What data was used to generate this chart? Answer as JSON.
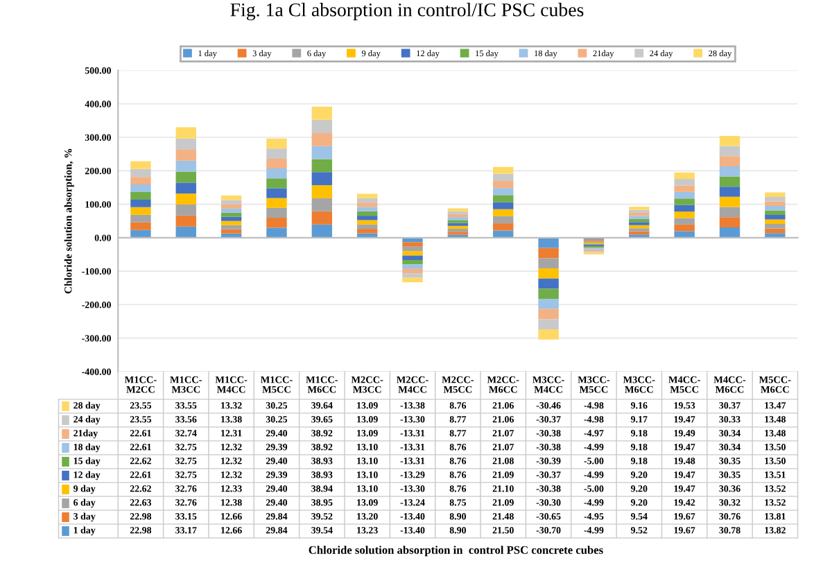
{
  "chart_data": {
    "type": "bar",
    "stacked": true,
    "title": "Fig. 1a Cl absorption in control/IC PSC cubes",
    "annotations": [
      "Chloride solution absorption in  control PSC concrete cubes"
    ],
    "ylabel": "Chloride solution absorption, %",
    "categories": [
      "M1CC-M2CC",
      "M1CC-M3CC",
      "M1CC-M4CC",
      "M1CC-M5CC",
      "M1CC-M6CC",
      "M2CC-M3CC",
      "M2CC-M4CC",
      "M2CC-M5CC",
      "M2CC-M6CC",
      "M3CC-M4CC",
      "M3CC-M5CC",
      "M3CC-M6CC",
      "M4CC-M5CC",
      "M4CC-M6CC",
      "M5CC-M6CC"
    ],
    "series": [
      {
        "name": "1 day",
        "color": "#5b9bd5",
        "values": [
          22.98,
          33.17,
          12.66,
          29.84,
          39.54,
          13.23,
          -13.4,
          8.9,
          21.5,
          -30.7,
          -4.99,
          9.52,
          19.67,
          30.78,
          13.82
        ],
        "value_labels": [
          "22.98",
          "33.17",
          "12.66",
          "29.84",
          "39.54",
          "13.23",
          "-13.40",
          "8.90",
          "21.50",
          "-30.70",
          "-4.99",
          "9.52",
          "19.67",
          "30.78",
          "13.82"
        ]
      },
      {
        "name": "3 day",
        "color": "#ed7d31",
        "values": [
          22.98,
          33.15,
          12.66,
          29.84,
          39.52,
          13.2,
          -13.4,
          8.9,
          21.48,
          -30.65,
          -4.95,
          9.54,
          19.67,
          30.76,
          13.81
        ],
        "value_labels": [
          "22.98",
          "33.15",
          "12.66",
          "29.84",
          "39.52",
          "13.20",
          "-13.40",
          "8.90",
          "21.48",
          "-30.65",
          "-4.95",
          "9.54",
          "19.67",
          "30.76",
          "13.81"
        ]
      },
      {
        "name": "6 day",
        "color": "#a5a5a5",
        "values": [
          22.63,
          32.76,
          12.38,
          29.4,
          38.95,
          13.09,
          -13.24,
          8.75,
          21.09,
          -30.3,
          -4.99,
          9.2,
          19.42,
          30.32,
          13.52
        ],
        "value_labels": [
          "22.63",
          "32.76",
          "12.38",
          "29.40",
          "38.95",
          "13.09",
          "-13.24",
          "8.75",
          "21.09",
          "-30.30",
          "-4.99",
          "9.20",
          "19.42",
          "30.32",
          "13.52"
        ]
      },
      {
        "name": "9 day",
        "color": "#ffc000",
        "values": [
          22.62,
          32.76,
          12.33,
          29.4,
          38.94,
          13.1,
          -13.3,
          8.76,
          21.1,
          -30.38,
          -5.0,
          9.2,
          19.47,
          30.36,
          13.52
        ],
        "value_labels": [
          "22.62",
          "32.76",
          "12.33",
          "29.40",
          "38.94",
          "13.10",
          "-13.30",
          "8.76",
          "21.10",
          "-30.38",
          "-5.00",
          "9.20",
          "19.47",
          "30.36",
          "13.52"
        ]
      },
      {
        "name": "12 day",
        "color": "#4472c4",
        "values": [
          22.61,
          32.75,
          12.32,
          29.39,
          38.93,
          13.1,
          -13.29,
          8.76,
          21.09,
          -30.37,
          -4.99,
          9.2,
          19.47,
          30.35,
          13.51
        ],
        "value_labels": [
          "22.61",
          "32.75",
          "12.32",
          "29.39",
          "38.93",
          "13.10",
          "-13.29",
          "8.76",
          "21.09",
          "-30.37",
          "-4.99",
          "9.20",
          "19.47",
          "30.35",
          "13.51"
        ]
      },
      {
        "name": "15 day",
        "color": "#70ad47",
        "values": [
          22.62,
          32.75,
          12.32,
          29.4,
          38.93,
          13.1,
          -13.31,
          8.76,
          21.08,
          -30.39,
          -5.0,
          9.18,
          19.48,
          30.35,
          13.5
        ],
        "value_labels": [
          "22.62",
          "32.75",
          "12.32",
          "29.40",
          "38.93",
          "13.10",
          "-13.31",
          "8.76",
          "21.08",
          "-30.39",
          "-5.00",
          "9.18",
          "19.48",
          "30.35",
          "13.50"
        ]
      },
      {
        "name": "18 day",
        "color": "#9dc3e6",
        "values": [
          22.61,
          32.75,
          12.32,
          29.39,
          38.92,
          13.1,
          -13.31,
          8.76,
          21.07,
          -30.38,
          -4.99,
          9.18,
          19.47,
          30.34,
          13.5
        ],
        "value_labels": [
          "22.61",
          "32.75",
          "12.32",
          "29.39",
          "38.92",
          "13.10",
          "-13.31",
          "8.76",
          "21.07",
          "-30.38",
          "-4.99",
          "9.18",
          "19.47",
          "30.34",
          "13.50"
        ]
      },
      {
        "name": "21day",
        "color": "#f4b183",
        "values": [
          22.61,
          32.74,
          12.31,
          29.4,
          38.92,
          13.09,
          -13.31,
          8.77,
          21.07,
          -30.38,
          -4.97,
          9.18,
          19.49,
          30.34,
          13.48
        ],
        "value_labels": [
          "22.61",
          "32.74",
          "12.31",
          "29.40",
          "38.92",
          "13.09",
          "-13.31",
          "8.77",
          "21.07",
          "-30.38",
          "-4.97",
          "9.18",
          "19.49",
          "30.34",
          "13.48"
        ]
      },
      {
        "name": "24 day",
        "color": "#c9c9c9",
        "values": [
          23.55,
          33.56,
          13.38,
          30.25,
          39.65,
          13.09,
          -13.3,
          8.77,
          21.06,
          -30.37,
          -4.98,
          9.17,
          19.47,
          30.33,
          13.48
        ],
        "value_labels": [
          "23.55",
          "33.56",
          "13.38",
          "30.25",
          "39.65",
          "13.09",
          "-13.30",
          "8.77",
          "21.06",
          "-30.37",
          "-4.98",
          "9.17",
          "19.47",
          "30.33",
          "13.48"
        ]
      },
      {
        "name": "28 day",
        "color": "#ffd966",
        "values": [
          23.55,
          33.55,
          13.32,
          30.25,
          39.64,
          13.09,
          -13.38,
          8.76,
          21.06,
          -30.46,
          -4.98,
          9.16,
          19.53,
          30.37,
          13.47
        ],
        "value_labels": [
          "23.55",
          "33.55",
          "13.32",
          "30.25",
          "39.64",
          "13.09",
          "-13.38",
          "8.76",
          "21.06",
          "-30.46",
          "-4.98",
          "9.16",
          "19.53",
          "30.37",
          "13.47"
        ]
      }
    ],
    "ylim": [
      -400,
      500
    ],
    "yticks": [
      {
        "value": -400,
        "label": "-400.00"
      },
      {
        "value": -300,
        "label": "-300.00"
      },
      {
        "value": -200,
        "label": "-200.00"
      },
      {
        "value": -100,
        "label": "-100.00"
      },
      {
        "value": 0,
        "label": "0.00"
      },
      {
        "value": 100,
        "label": "100.00"
      },
      {
        "value": 200,
        "label": "200.00"
      },
      {
        "value": 300,
        "label": "300.00"
      },
      {
        "value": 400,
        "label": "400.00"
      },
      {
        "value": 500,
        "label": "500.00"
      }
    ],
    "grid": "y",
    "legend": "top"
  }
}
